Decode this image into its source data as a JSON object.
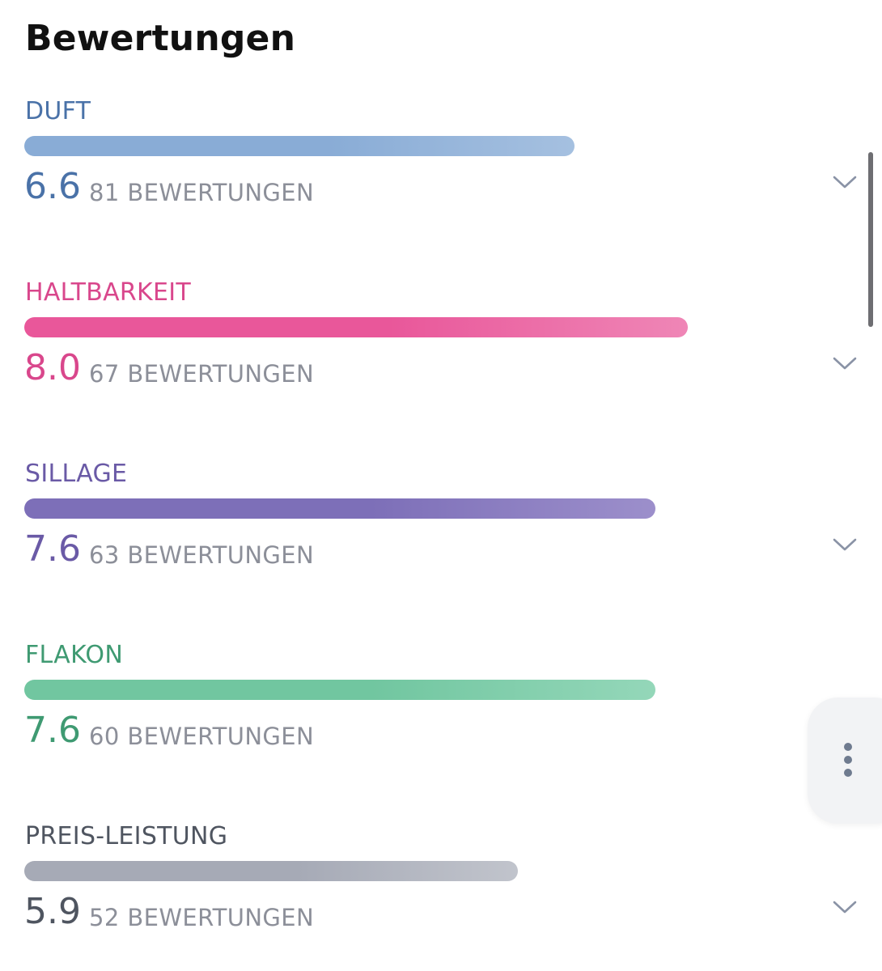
{
  "header": {
    "title": "Bewertungen"
  },
  "ratings": [
    {
      "label": "DUFT",
      "score": "6.6",
      "count": "81 BEWERTUNGEN",
      "fill_fraction": 0.68,
      "color": "#4a72a8",
      "bar_start": "#89acd6",
      "bar_end": "#a5c0e0",
      "expandable": true
    },
    {
      "label": "HALTBARKEIT",
      "score": "8.0",
      "count": "67 BEWERTUNGEN",
      "fill_fraction": 0.82,
      "color": "#d9478c",
      "bar_start": "#e9579a",
      "bar_end": "#ef86b6",
      "expandable": true
    },
    {
      "label": "SILLAGE",
      "score": "7.6",
      "count": "63 BEWERTUNGEN",
      "fill_fraction": 0.78,
      "color": "#6a5aa6",
      "bar_start": "#7d6fb8",
      "bar_end": "#9c8fcb",
      "expandable": true
    },
    {
      "label": "FLAKON",
      "score": "7.6",
      "count": "60 BEWERTUNGEN",
      "fill_fraction": 0.78,
      "color": "#3f9a72",
      "bar_start": "#71c6a0",
      "bar_end": "#94d7b9",
      "expandable": false
    },
    {
      "label": "PREIS-LEISTUNG",
      "score": "5.9",
      "count": "52 BEWERTUNGEN",
      "fill_fraction": 0.61,
      "color": "#4f5560",
      "bar_start": "#a6aab6",
      "bar_end": "#c1c4cc",
      "expandable": true
    }
  ],
  "icons": {
    "expand": "chevron-down-icon",
    "menu": "more-vertical-icon"
  }
}
